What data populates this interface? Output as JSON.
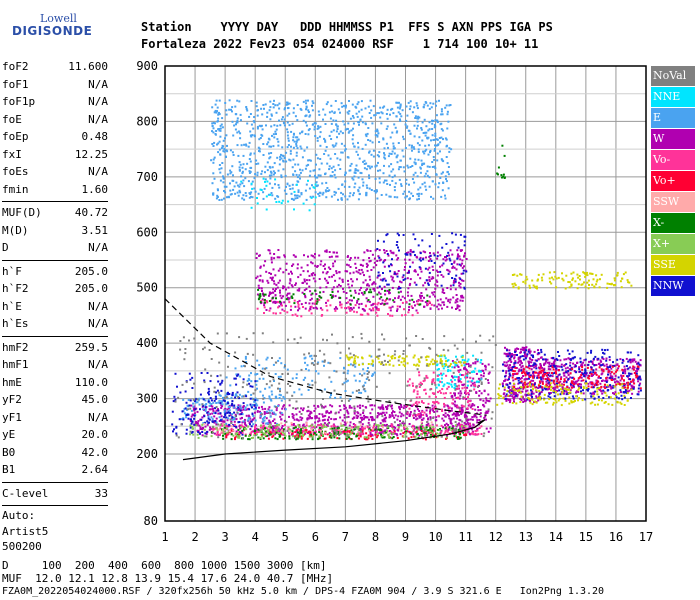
{
  "logo": {
    "line1": "Lowell",
    "line2": "DIGISONDE"
  },
  "header": {
    "labels": "Station    YYYY DAY   DDD HHMMSS P1  FFS S AXN PPS IGA PS",
    "values": "Fortaleza 2022 Fev23 054 024000 RSF    1 714 100 10+ 11"
  },
  "params": {
    "group1": [
      {
        "name": "foF2",
        "value": "11.600"
      },
      {
        "name": "foF1",
        "value": "N/A"
      },
      {
        "name": "foF1p",
        "value": "N/A"
      },
      {
        "name": "foE",
        "value": "N/A"
      },
      {
        "name": "foEp",
        "value": "0.48"
      },
      {
        "name": "fxI",
        "value": "12.25"
      },
      {
        "name": "foEs",
        "value": "N/A"
      },
      {
        "name": "fmin",
        "value": "1.60"
      }
    ],
    "group2": [
      {
        "name": "MUF(D)",
        "value": "40.72"
      },
      {
        "name": "M(D)",
        "value": "3.51"
      },
      {
        "name": "D",
        "value": "N/A"
      }
    ],
    "group3": [
      {
        "name": "h`F",
        "value": "205.0"
      },
      {
        "name": "h`F2",
        "value": "205.0"
      },
      {
        "name": "h`E",
        "value": "N/A"
      },
      {
        "name": "h`Es",
        "value": "N/A"
      }
    ],
    "group4": [
      {
        "name": "hmF2",
        "value": "259.5"
      },
      {
        "name": "hmF1",
        "value": "N/A"
      },
      {
        "name": "hmE",
        "value": "110.0"
      },
      {
        "name": "yF2",
        "value": "45.0"
      },
      {
        "name": "yF1",
        "value": "N/A"
      },
      {
        "name": "yE",
        "value": "20.0"
      },
      {
        "name": "B0",
        "value": "42.0"
      },
      {
        "name": "B1",
        "value": "2.64"
      }
    ],
    "group5": [
      {
        "name": "C-level",
        "value": "33"
      }
    ],
    "auto_lines": [
      "Auto:",
      "Artist5",
      "500200"
    ]
  },
  "legend": [
    {
      "label": "NoVal",
      "color": "#808080"
    },
    {
      "label": "NNE",
      "color": "#00e5ff"
    },
    {
      "label": "E",
      "color": "#4aa3f0"
    },
    {
      "label": "W",
      "color": "#b000b0"
    },
    {
      "label": "Vo-",
      "color": "#ff3399"
    },
    {
      "label": "Vo+",
      "color": "#ff0033"
    },
    {
      "label": "SSW",
      "color": "#ffaaaa"
    },
    {
      "label": "X-",
      "color": "#008000"
    },
    {
      "label": "X+",
      "color": "#88cc55"
    },
    {
      "label": "SSE",
      "color": "#d4d400"
    },
    {
      "label": "NNW",
      "color": "#1010d0"
    }
  ],
  "footer": {
    "line1": "D     100  200  400  600  800 1000 1500 3000 [km]",
    "line2": "MUF  12.0 12.1 12.8 13.9 15.4 17.6 24.0 40.7 [MHz]",
    "line3": "FZA0M_2022054024000.RSF / 320fx256h 50 kHz 5.0 km / DPS-4 FZA0M 904 / 3.9 S 321.6 E   Ion2Png 1.3.20"
  },
  "chart_data": {
    "type": "scatter",
    "x_ticks": [
      "1",
      "2",
      "3",
      "4",
      "5",
      "6",
      "7",
      "8",
      "9",
      "10",
      "11",
      "12",
      "13",
      "14",
      "15",
      "16",
      "17"
    ],
    "y_ticks": [
      "80",
      "200",
      "300",
      "400",
      "500",
      "600",
      "700",
      "800",
      "900"
    ],
    "xlim": [
      1,
      17
    ],
    "ylim": [
      80,
      900
    ],
    "grid": true,
    "legend_position": "right",
    "series": [
      {
        "color": "#b000b0",
        "regions": [
          [
            1.8,
            11.4,
            235,
            290,
            0.55
          ],
          [
            4.0,
            11.0,
            460,
            570,
            0.3
          ],
          [
            12.2,
            13.5,
            295,
            395,
            0.75
          ],
          [
            13.5,
            16.8,
            310,
            375,
            0.6
          ],
          [
            10.5,
            11.8,
            240,
            370,
            0.35
          ]
        ]
      },
      {
        "color": "#4aa3f0",
        "regions": [
          [
            2.5,
            10.5,
            660,
            840,
            0.28
          ],
          [
            1.5,
            5.0,
            255,
            310,
            0.3
          ],
          [
            3.0,
            8.0,
            300,
            380,
            0.12
          ]
        ]
      },
      {
        "color": "#1010d0",
        "regions": [
          [
            1.2,
            4.0,
            235,
            350,
            0.18
          ],
          [
            12.2,
            16.8,
            300,
            390,
            0.25
          ],
          [
            8.0,
            11.0,
            500,
            600,
            0.12
          ]
        ]
      },
      {
        "color": "#00e5ff",
        "regions": [
          [
            10.0,
            11.5,
            320,
            380,
            0.35
          ],
          [
            3.5,
            6.0,
            640,
            700,
            0.08
          ]
        ]
      },
      {
        "color": "#d4d400",
        "regions": [
          [
            12.0,
            16.5,
            290,
            330,
            0.3
          ],
          [
            7.0,
            11.0,
            360,
            380,
            0.45
          ],
          [
            12.5,
            16.5,
            500,
            530,
            0.35
          ]
        ]
      },
      {
        "color": "#ff3399",
        "regions": [
          [
            2.5,
            11.5,
            235,
            255,
            0.45
          ],
          [
            9.0,
            11.3,
            270,
            350,
            0.25
          ],
          [
            4.0,
            10.0,
            450,
            480,
            0.2
          ]
        ]
      },
      {
        "color": "#ff0033",
        "regions": [
          [
            3.0,
            11.0,
            228,
            245,
            0.35
          ],
          [
            12.5,
            16.8,
            320,
            360,
            0.3
          ]
        ]
      },
      {
        "color": "#008000",
        "regions": [
          [
            2.5,
            11.0,
            228,
            250,
            0.3
          ],
          [
            4.0,
            10.0,
            470,
            500,
            0.12
          ],
          [
            12.0,
            12.3,
            690,
            760,
            0.2
          ]
        ]
      },
      {
        "color": "#88cc55",
        "regions": [
          [
            1.8,
            11.0,
            230,
            255,
            0.25
          ]
        ]
      },
      {
        "color": "#ffaaaa",
        "regions": [
          [
            2.0,
            10.0,
            240,
            260,
            0.08
          ]
        ]
      },
      {
        "color": "#808080",
        "regions": [
          [
            1.3,
            12.0,
            230,
            420,
            0.05
          ]
        ]
      }
    ],
    "profile_solid": [
      [
        1.6,
        190
      ],
      [
        3,
        200
      ],
      [
        5,
        207
      ],
      [
        7,
        213
      ],
      [
        9,
        224
      ],
      [
        10.5,
        236
      ],
      [
        11.3,
        248
      ],
      [
        11.65,
        262
      ],
      [
        11.4,
        256
      ]
    ],
    "profile_dashed": [
      [
        1.0,
        480
      ],
      [
        2.5,
        400
      ],
      [
        4.5,
        340
      ],
      [
        6.5,
        310
      ],
      [
        8.5,
        293
      ],
      [
        10.5,
        278
      ],
      [
        11.7,
        270
      ]
    ]
  }
}
